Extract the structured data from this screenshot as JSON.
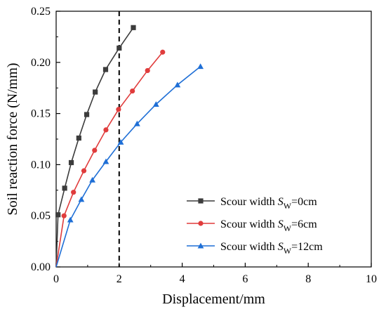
{
  "chart_data": {
    "type": "line",
    "xlabel": "Displacement/mm",
    "ylabel": "Soil reaction force (N/mm)",
    "xlim": [
      0,
      10
    ],
    "ylim": [
      0,
      0.25
    ],
    "x_ticks": [
      "0",
      "2",
      "4",
      "6",
      "8",
      "10"
    ],
    "y_ticks": [
      "0.00",
      "0.05",
      "0.10",
      "0.15",
      "0.20",
      "0.25"
    ],
    "grid": false,
    "legend_position": "bottom-right",
    "reference_line": {
      "x": 2,
      "style": "dashed",
      "color": "#000000"
    },
    "series": [
      {
        "label_prefix": "Scour width ",
        "label_var": "S",
        "label_sub": "W",
        "label_suffix": "=0cm",
        "color": "#3c3c3c",
        "marker": "square",
        "x": [
          0,
          0.06,
          0.27,
          0.48,
          0.72,
          0.97,
          1.24,
          1.57,
          2.0,
          2.45
        ],
        "y": [
          0,
          0.051,
          0.077,
          0.102,
          0.126,
          0.149,
          0.171,
          0.193,
          0.214,
          0.234
        ]
      },
      {
        "label_prefix": "Scour width ",
        "label_var": "S",
        "label_sub": "W",
        "label_suffix": "=6cm",
        "color": "#e03c3c",
        "marker": "circle",
        "x": [
          0,
          0.25,
          0.55,
          0.88,
          1.22,
          1.58,
          1.98,
          2.42,
          2.9,
          3.38
        ],
        "y": [
          0,
          0.05,
          0.073,
          0.094,
          0.114,
          0.134,
          0.154,
          0.172,
          0.192,
          0.21
        ]
      },
      {
        "label_prefix": "Scour width ",
        "label_var": "S",
        "label_sub": "W",
        "label_suffix": "=12cm",
        "color": "#1f6fd6",
        "marker": "triangle",
        "x": [
          0,
          0.45,
          0.8,
          1.15,
          1.58,
          2.05,
          2.57,
          3.17,
          3.85,
          4.58
        ],
        "y": [
          0,
          0.046,
          0.066,
          0.085,
          0.103,
          0.122,
          0.14,
          0.159,
          0.178,
          0.196
        ]
      }
    ]
  }
}
